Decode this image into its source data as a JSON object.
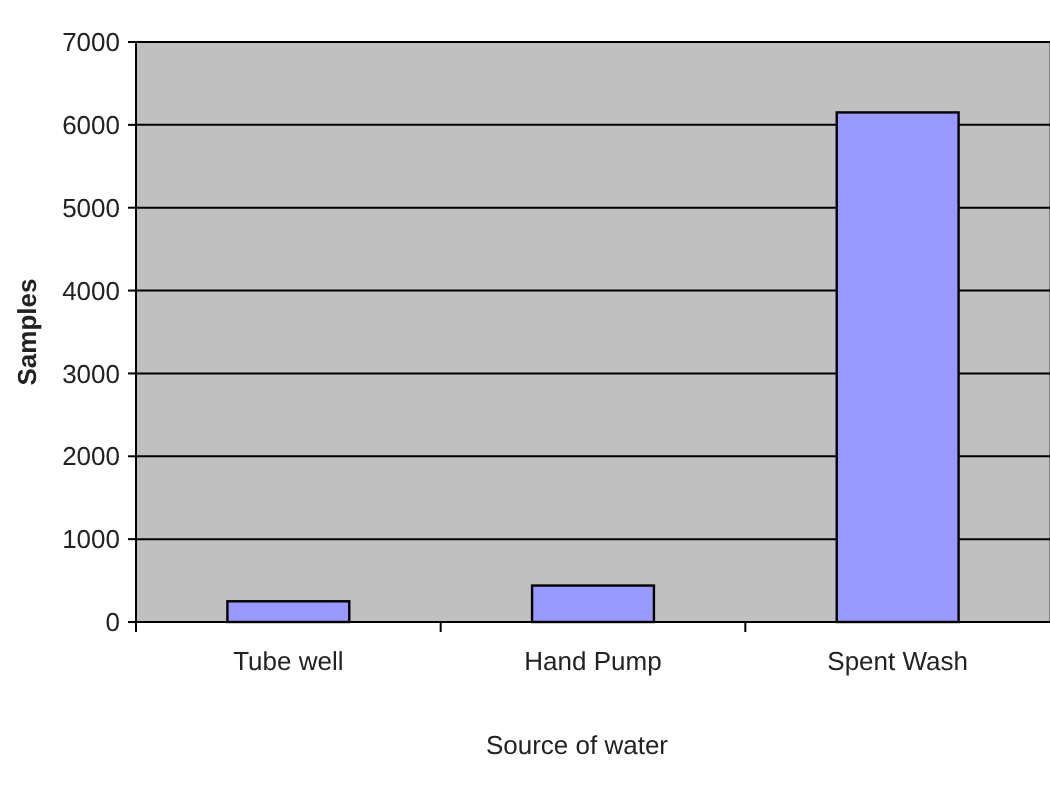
{
  "chart_data": {
    "type": "bar",
    "xlabel": "Source of water",
    "ylabel": "Samples",
    "categories": [
      "Tube well",
      "Hand Pump",
      "Spent Wash"
    ],
    "values": [
      250,
      440,
      6150
    ],
    "color": "#9999ff",
    "ylim": [
      0,
      7000
    ],
    "yticks": [
      0,
      1000,
      2000,
      3000,
      4000,
      5000,
      6000,
      7000
    ],
    "grid": "y"
  }
}
